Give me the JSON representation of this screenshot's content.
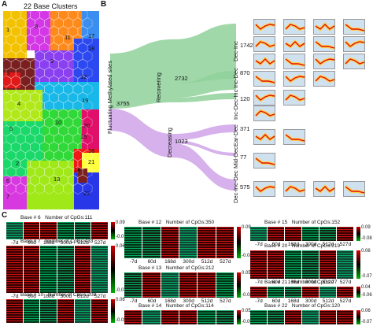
{
  "panelA": {
    "letter": "A",
    "title": "22 Base Clusters",
    "cluster_labels": [
      "1",
      "8",
      "11",
      "17",
      "9",
      "18",
      "3",
      "12",
      "4",
      "19",
      "10",
      "5",
      "20",
      "15",
      "21",
      "16",
      "14",
      "2",
      "13",
      "6",
      "7",
      "22"
    ]
  },
  "panelB": {
    "letter": "B",
    "root": {
      "label": "Fluctuating Methylated sites",
      "count": "3755"
    },
    "branches": [
      {
        "label": "Recovering",
        "count": "2732"
      },
      {
        "label": "Decreasing",
        "count": "1023"
      }
    ],
    "leaves": [
      {
        "label": "Dec-Inc",
        "count": "1742"
      },
      {
        "label": "Inc-Dec",
        "count": "870"
      },
      {
        "label": "Inc-Dec-Inc",
        "count": "120"
      },
      {
        "label": "Ear-Dec",
        "count": "371"
      },
      {
        "label": "Mid-Dec",
        "count": "77"
      },
      {
        "label": "Dec-Inc-Dec",
        "count": "575"
      }
    ],
    "colors": {
      "recovering": "#8fd19a",
      "decreasing": "#cfa3e8"
    }
  },
  "panelC": {
    "letter": "C",
    "heatmaps": [
      {
        "base": "Base # 6",
        "cpgs": "Number of CpGs:111",
        "max": "0.09",
        "min": "-0.07"
      },
      {
        "base": "Base # 7",
        "cpgs": "Number of CpGs:433",
        "max": "0.06",
        "min": "-0.07"
      },
      {
        "base": "Base # 10",
        "cpgs": "Number of CpGs:208",
        "max": "0.06",
        "min": "-0.08"
      },
      {
        "base": "Base # 12",
        "cpgs": "Number of CpGs:350",
        "max": "0.09",
        "min": "-0.08"
      },
      {
        "base": "Base # 13",
        "cpgs": "Number of CpGs:212",
        "max": "0.05",
        "min": "-0.08"
      },
      {
        "base": "Base # 14",
        "cpgs": "Number of CpGs:114",
        "max": "0.05",
        "min": "-0.08"
      },
      {
        "base": "Base # 15",
        "cpgs": "Number of CpGs:152",
        "max": "0.09",
        "min": "-0.08"
      },
      {
        "base": "Base # 20",
        "cpgs": "Number of CpGs:219",
        "max": "0.06",
        "min": "-0.07"
      },
      {
        "base": "Base # 21",
        "cpgs": "Number of CpGs:77",
        "max": "0.04",
        "min": "-0.06"
      },
      {
        "base": "Base # 22",
        "cpgs": "Number of CpGs:120",
        "max": "0.06",
        "min": "-0.07"
      }
    ],
    "timepoints": [
      "-7d",
      "60d",
      "168d",
      "300d",
      "512d",
      "527d"
    ],
    "colors": {
      "high": "#d00000",
      "mid": "#000000",
      "low": "#00b000"
    }
  }
}
